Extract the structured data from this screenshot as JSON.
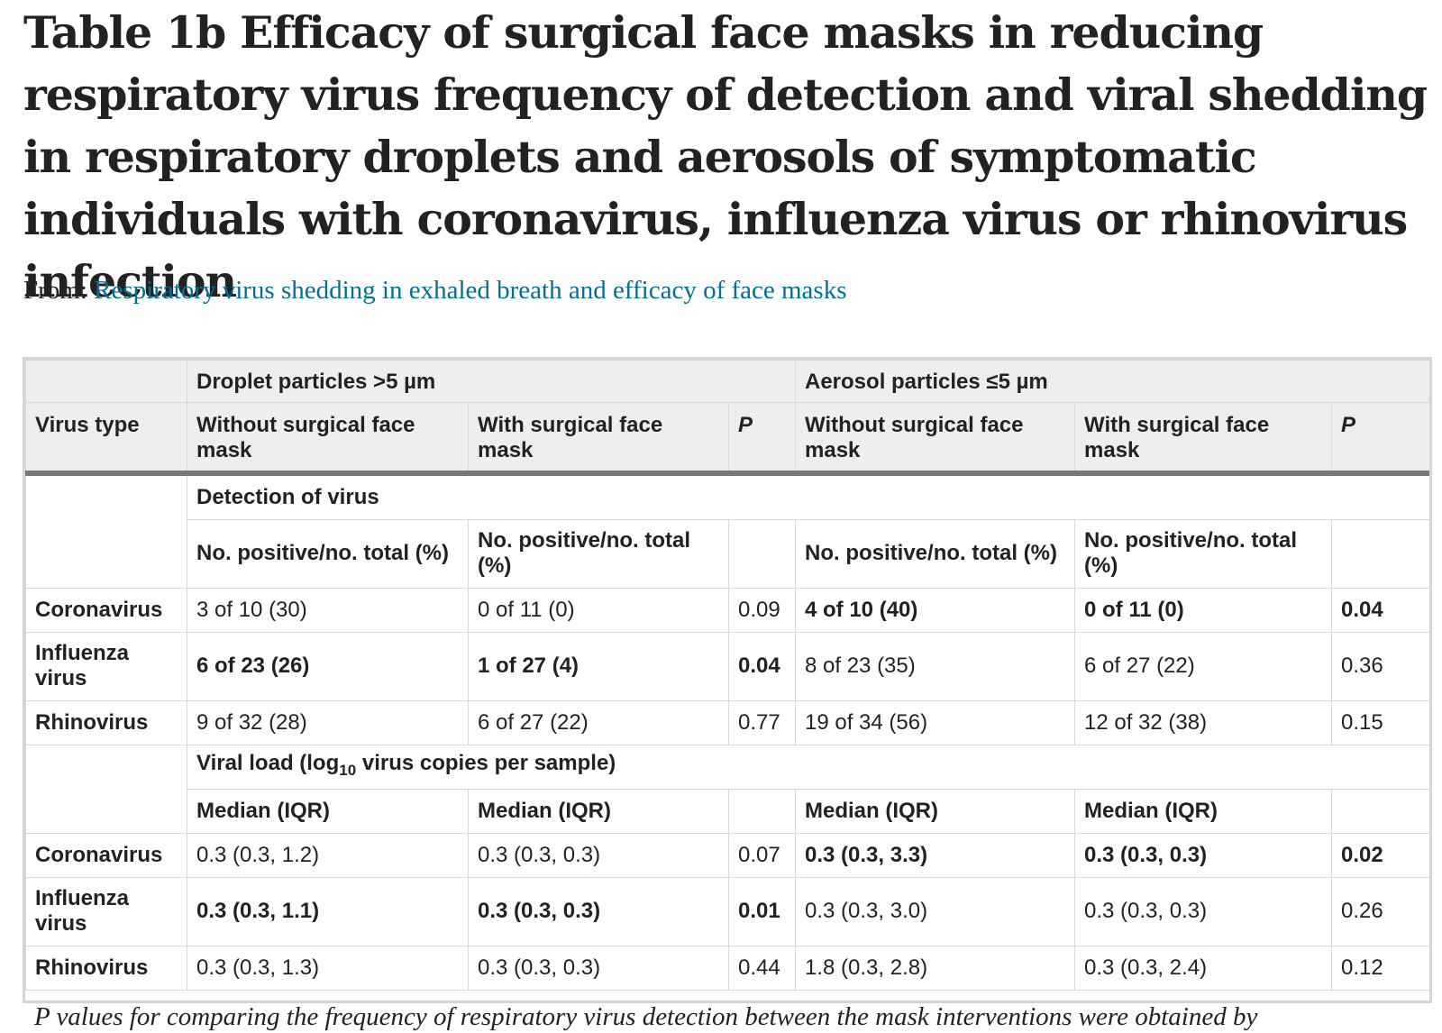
{
  "title": "Table 1b Efficacy of surgical face masks in reducing respiratory virus frequency of detection and viral shedding in respiratory droplets and aerosols of symptomatic individuals with coronavirus, influenza virus or rhinovirus infection",
  "source": {
    "prefix": "From: ",
    "link_text": "Respiratory virus shedding in exhaled breath and efficacy of face masks"
  },
  "colors": {
    "link": "#006f9a",
    "header_bg": "#eeeeee",
    "rule": "#777777"
  },
  "table": {
    "groups": {
      "droplet": "Droplet particles >5 µm",
      "aerosol": "Aerosol particles ≤5 µm"
    },
    "columns": {
      "virus_type": "Virus type",
      "without_mask": "Without surgical face mask",
      "with_mask": "With surgical face mask",
      "p": "P"
    },
    "detection": {
      "section_label": "Detection of virus",
      "subheader": "No. positive/no. total (%)",
      "rows": [
        {
          "virus": "Coronavirus",
          "d_without": "3 of 10 (30)",
          "d_with": "0 of 11 (0)",
          "d_p": "0.09",
          "a_without": "4 of 10 (40)",
          "a_with": "0 of 11 (0)",
          "a_p": "0.04"
        },
        {
          "virus": "Influenza virus",
          "d_without": "6 of 23 (26)",
          "d_with": "1 of 27 (4)",
          "d_p": "0.04",
          "a_without": "8 of 23 (35)",
          "a_with": "6 of 27 (22)",
          "a_p": "0.36"
        },
        {
          "virus": "Rhinovirus",
          "d_without": "9 of 32 (28)",
          "d_with": "6 of 27 (22)",
          "d_p": "0.77",
          "a_without": "19 of 34 (56)",
          "a_with": "12 of 32 (38)",
          "a_p": "0.15"
        }
      ]
    },
    "viral_load": {
      "section_label_pre": "Viral load (log",
      "section_label_sub": "10",
      "section_label_post": " virus copies per sample)",
      "subheader": "Median (IQR)",
      "rows": [
        {
          "virus": "Coronavirus",
          "d_without": "0.3 (0.3, 1.2)",
          "d_with": "0.3 (0.3, 0.3)",
          "d_p": "0.07",
          "a_without": "0.3 (0.3, 3.3)",
          "a_with": "0.3 (0.3, 0.3)",
          "a_p": "0.02"
        },
        {
          "virus": "Influenza virus",
          "d_without": "0.3 (0.3, 1.1)",
          "d_with": "0.3 (0.3, 0.3)",
          "d_p": "0.01",
          "a_without": "0.3 (0.3, 3.0)",
          "a_with": "0.3 (0.3, 0.3)",
          "a_p": "0.26"
        },
        {
          "virus": "Rhinovirus",
          "d_without": "0.3 (0.3, 1.3)",
          "d_with": "0.3 (0.3, 0.3)",
          "d_p": "0.44",
          "a_without": "1.8 (0.3, 2.8)",
          "a_with": "0.3 (0.3, 2.4)",
          "a_p": "0.12"
        }
      ]
    }
  },
  "footnote": "P values for comparing the frequency of respiratory virus detection between the mask interventions were obtained by"
}
